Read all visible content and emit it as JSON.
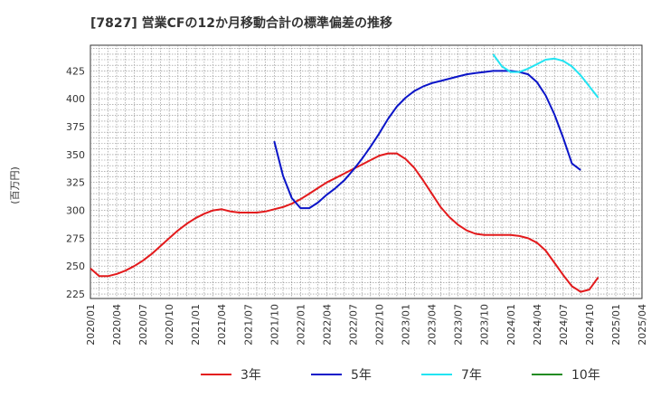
{
  "chart_data": {
    "type": "line",
    "title": "[7827]  営業CFの12か月移動合計の標準偏差の推移",
    "ylabel": "(百万円)",
    "xlabel": "",
    "ylim": [
      221,
      448
    ],
    "yticks": [
      225,
      250,
      275,
      300,
      325,
      350,
      375,
      400,
      425
    ],
    "xticks": [
      "2020/01",
      "2020/04",
      "2020/07",
      "2020/10",
      "2021/01",
      "2021/04",
      "2021/07",
      "2021/10",
      "2022/01",
      "2022/04",
      "2022/07",
      "2022/10",
      "2023/01",
      "2023/04",
      "2023/07",
      "2023/10",
      "2024/01",
      "2024/04",
      "2024/07",
      "2024/10",
      "2025/01",
      "2025/04"
    ],
    "grid": true,
    "legend_position": "bottom",
    "series": [
      {
        "name": "3年",
        "color": "#e31a1c",
        "start_index": 0,
        "values": [
          248,
          241,
          241,
          243,
          246,
          250,
          255,
          261,
          268,
          275,
          282,
          288,
          293,
          297,
          300,
          301,
          299,
          298,
          298,
          298,
          299,
          301,
          303,
          306,
          310,
          315,
          320,
          325,
          329,
          333,
          337,
          341,
          345,
          349,
          351,
          351,
          346,
          338,
          327,
          315,
          303,
          294,
          287,
          282,
          279,
          278,
          278,
          278,
          278,
          277,
          275,
          271,
          264,
          253,
          242,
          232,
          227,
          229,
          240
        ]
      },
      {
        "name": "5年",
        "color": "#0a14c8",
        "start_index": 21,
        "values": [
          362,
          331,
          311,
          302,
          302,
          307,
          314,
          320,
          327,
          336,
          346,
          357,
          369,
          382,
          393,
          401,
          407,
          411,
          414,
          416,
          418,
          420,
          422,
          423,
          424,
          425,
          425,
          425,
          424,
          422,
          415,
          403,
          386,
          365,
          342,
          336
        ]
      },
      {
        "name": "7年",
        "color": "#22e4f2",
        "start_index": 46,
        "values": [
          440,
          429,
          424,
          424,
          427,
          431,
          435,
          436,
          434,
          429,
          421,
          411,
          401
        ]
      },
      {
        "name": "10年",
        "color": "#228b22",
        "start_index": 0,
        "values": []
      }
    ]
  }
}
